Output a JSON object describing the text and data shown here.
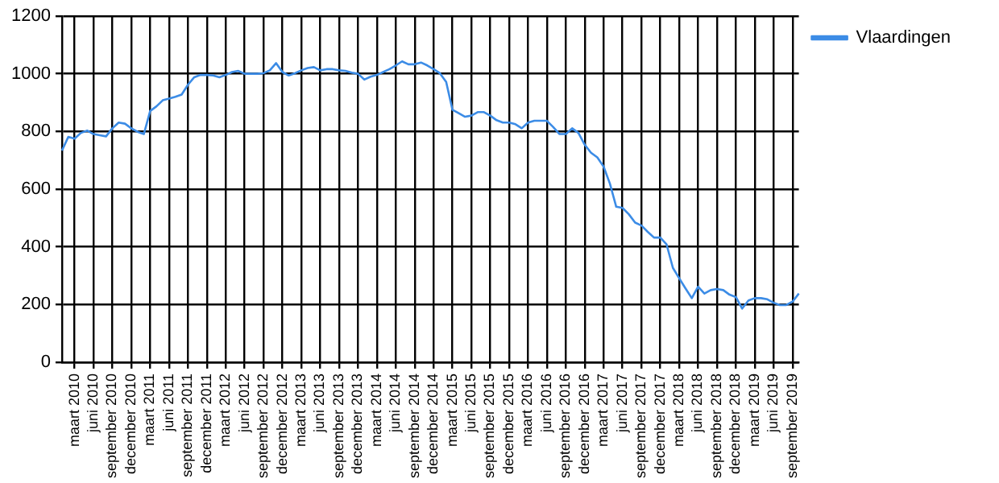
{
  "chart_data": {
    "type": "line",
    "categories": [
      null,
      null,
      "maart 2010",
      null,
      null,
      "juni 2010",
      null,
      null,
      "september 2010",
      null,
      null,
      "december 2010",
      null,
      null,
      "maart 2011",
      null,
      null,
      "juni 2011",
      null,
      null,
      "september 2011",
      null,
      null,
      "december 2011",
      null,
      null,
      "maart 2012",
      null,
      null,
      "juni 2012",
      null,
      null,
      "september 2012",
      null,
      null,
      "december 2012",
      null,
      null,
      "maart 2013",
      null,
      null,
      "juni 2013",
      null,
      null,
      "september 2013",
      null,
      null,
      "december 2013",
      null,
      null,
      "maart 2014",
      null,
      null,
      "juni 2014",
      null,
      null,
      "september 2014",
      null,
      null,
      "december 2014",
      null,
      null,
      "maart 2015",
      null,
      null,
      "juni 2015",
      null,
      null,
      "september 2015",
      null,
      null,
      "december 2015",
      null,
      null,
      "maart 2016",
      null,
      null,
      "juni 2016",
      null,
      null,
      "september 2016",
      null,
      null,
      "december 2016",
      null,
      null,
      "maart 2017",
      null,
      null,
      "juni 2017",
      null,
      null,
      "september 2017",
      null,
      null,
      "december 2017",
      null,
      null,
      "maart 2018",
      null,
      null,
      "juni 2018",
      null,
      null,
      "september 2018",
      null,
      null,
      "december 2018",
      null,
      null,
      "maart 2019",
      null,
      null,
      "juni 2019",
      null,
      null,
      "september 2019",
      null
    ],
    "series": [
      {
        "name": "Vlaardingen",
        "color": "#3c8ce6",
        "values": [
          734,
          781,
          775,
          795,
          803,
          791,
          787,
          783,
          811,
          831,
          827,
          811,
          799,
          791,
          871,
          887,
          908,
          914,
          920,
          928,
          962,
          988,
          996,
          996,
          994,
          988,
          996,
          1006,
          1010,
          1000,
          1000,
          1000,
          1002,
          1012,
          1037,
          1006,
          994,
          1002,
          1012,
          1020,
          1023,
          1012,
          1016,
          1016,
          1012,
          1010,
          1004,
          1000,
          980,
          990,
          996,
          1006,
          1016,
          1029,
          1043,
          1033,
          1033,
          1039,
          1029,
          1016,
          1002,
          972,
          875,
          863,
          851,
          855,
          867,
          867,
          855,
          839,
          831,
          831,
          825,
          811,
          831,
          837,
          837,
          837,
          815,
          791,
          791,
          811,
          795,
          754,
          726,
          710,
          678,
          619,
          539,
          535,
          513,
          484,
          474,
          452,
          432,
          432,
          408,
          327,
          291,
          256,
          222,
          262,
          238,
          250,
          254,
          250,
          234,
          226,
          186,
          214,
          222,
          222,
          218,
          206,
          198,
          198,
          210,
          238
        ]
      }
    ],
    "ylim": [
      0,
      1200
    ],
    "yticks": [
      0,
      200,
      400,
      600,
      800,
      1000,
      1200
    ],
    "grid": true,
    "legend": "top right",
    "marker": "none",
    "line_style": "solid"
  }
}
